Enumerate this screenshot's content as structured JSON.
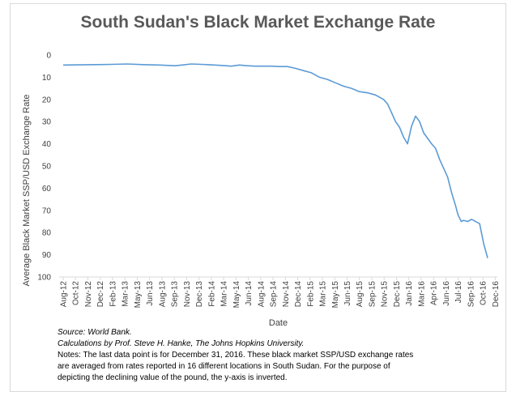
{
  "chart_data": {
    "type": "line",
    "title": "South Sudan's Black Market Exchange Rate",
    "xlabel": "Date",
    "ylabel": "Average Black Market SSP/USD Exchange Rate",
    "ylim": [
      0,
      100
    ],
    "y_inverted": true,
    "y_ticks": [
      0,
      10,
      20,
      30,
      40,
      50,
      60,
      70,
      80,
      90,
      100
    ],
    "x_ticks": [
      "Aug-12",
      "Oct-12",
      "Nov-12",
      "Dec-12",
      "Feb-13",
      "Mar-13",
      "May-13",
      "Jun-13",
      "Aug-13",
      "Sep-13",
      "Nov-13",
      "Dec-13",
      "Feb-14",
      "Mar-14",
      "May-14",
      "Jun-14",
      "Aug-14",
      "Sep-14",
      "Nov-14",
      "Dec-14",
      "Feb-15",
      "Mar-15",
      "May-15",
      "Jun-15",
      "Aug-15",
      "Sep-15",
      "Nov-15",
      "Dec-15",
      "Jan-16",
      "Mar-16",
      "Apr-16",
      "Jun-16",
      "Jul-16",
      "Sep-16",
      "Oct-16",
      "Dec-16"
    ],
    "series": [
      {
        "name": "Average Black Market SSP/USD Exchange Rate",
        "color": "#5b9bd5",
        "x": [
          0,
          2,
          4,
          6,
          8,
          10,
          12,
          14,
          16,
          18,
          20,
          21,
          22,
          23,
          24,
          25,
          26,
          27,
          28,
          29,
          30,
          31,
          32,
          33,
          34,
          35,
          36,
          37,
          38,
          39,
          39.5,
          40,
          40.5,
          41,
          41.5,
          42,
          42.5,
          43,
          43.5,
          44,
          44.5,
          45,
          46,
          46.5,
          47,
          48,
          48.5,
          49,
          49.3,
          49.7,
          50,
          50.5,
          51,
          52,
          52.5,
          53
        ],
        "y": [
          4.5,
          4.4,
          4.3,
          4.2,
          4.0,
          4.3,
          4.5,
          4.8,
          4.0,
          4.3,
          4.7,
          5.0,
          4.5,
          4.8,
          5.0,
          5.0,
          5.0,
          5.2,
          5.2,
          6.0,
          7.0,
          8.0,
          10.0,
          11.0,
          12.5,
          14.0,
          15.0,
          16.5,
          17.0,
          18.0,
          19.0,
          20.0,
          22.0,
          26.0,
          30.0,
          32.5,
          37.0,
          40.0,
          32.0,
          27.5,
          30.0,
          35.0,
          40.0,
          42.0,
          47.0,
          55.0,
          62.0,
          68.0,
          72.0,
          75.0,
          74.5,
          75.0,
          74.0,
          76.0,
          85.0,
          91.5
        ]
      }
    ]
  },
  "notes": {
    "source": "Source: World Bank.",
    "calculations": "Calculations by Prof. Steve H. Hanke, The Johns Hopkins University.",
    "line1": "Notes: The last data point is for December 31, 2016. These black market SSP/USD exchange rates",
    "line2": "are averaged from rates reported in 16 different locations in South Sudan. For the purpose of",
    "line3": "depicting the declining value of the pound, the y-axis is inverted."
  }
}
